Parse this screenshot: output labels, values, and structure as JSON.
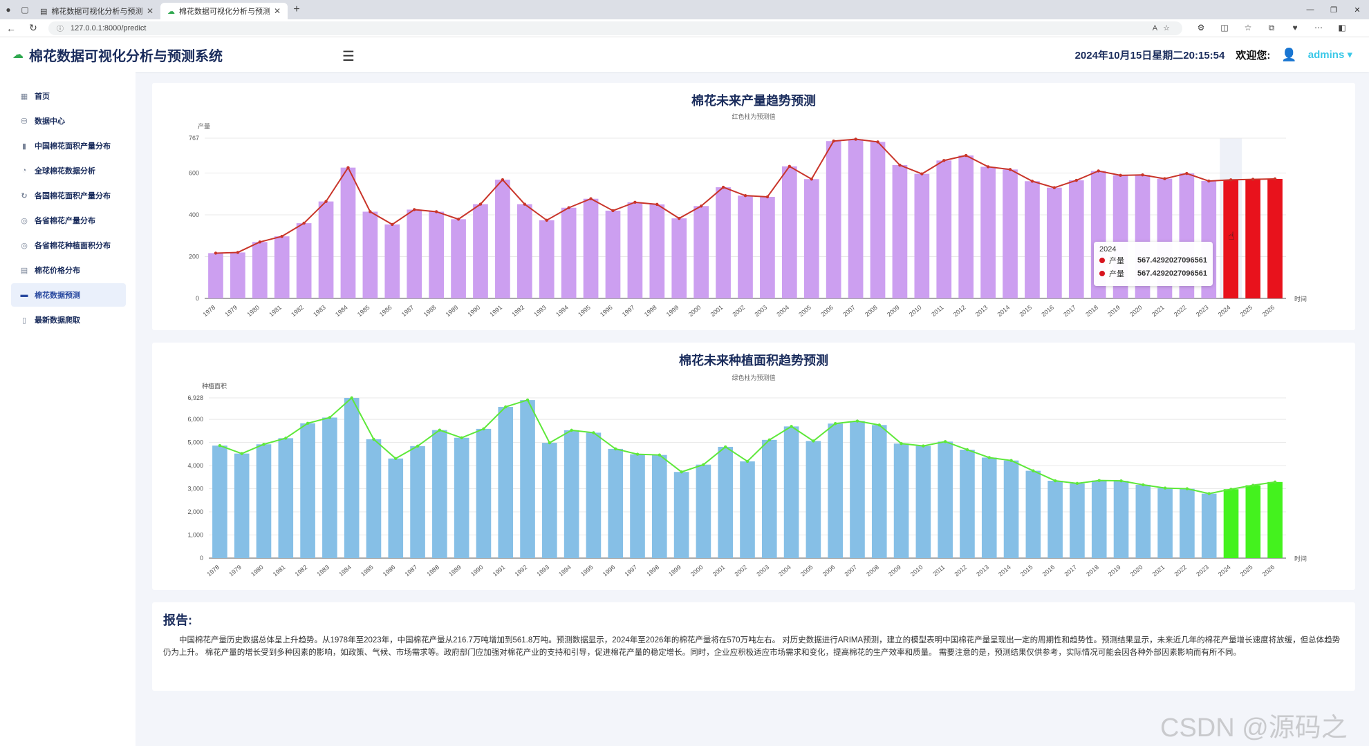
{
  "browser": {
    "tabs": [
      {
        "title": "棉花数据可视化分析与预测系统",
        "active": false
      },
      {
        "title": "棉花数据可视化分析与预测系统",
        "active": true
      }
    ],
    "url": "127.0.0.1:8000/predict"
  },
  "header": {
    "title": "棉花数据可视化分析与预测系统",
    "datetime": "2024年10月15日星期二20:15:54",
    "welcome": "欢迎您:",
    "user": "admins"
  },
  "sidebar": {
    "items": [
      {
        "label": "首页",
        "icon": "grid-icon"
      },
      {
        "label": "数据中心",
        "icon": "database-icon"
      },
      {
        "label": "中国棉花面积产量分布",
        "icon": "bar-chart-icon"
      },
      {
        "label": "全球棉花数据分析",
        "icon": "globe-icon"
      },
      {
        "label": "各国棉花面积产量分布",
        "icon": "refresh-icon"
      },
      {
        "label": "各省棉花产量分布",
        "icon": "circle-icon"
      },
      {
        "label": "各省棉花种植面积分布",
        "icon": "circle-icon"
      },
      {
        "label": "棉花价格分布",
        "icon": "calendar-icon"
      },
      {
        "label": "棉花数据预测",
        "icon": "table-icon",
        "active": true
      },
      {
        "label": "最新数据爬取",
        "icon": "file-icon"
      }
    ]
  },
  "chart_data": [
    {
      "type": "bar",
      "title": "棉花未来产量趋势预测",
      "subtitle": "红色柱为预测值",
      "ylabel": "产量",
      "xlabel": "时间",
      "ylim": [
        0,
        767
      ],
      "yticks": [
        0,
        200,
        400,
        600,
        767
      ],
      "ytick_labels": [
        "0",
        "200",
        "400",
        "600",
        "767"
      ],
      "grid": true,
      "bar_color": "#cc9ff0",
      "forecast_color": "#e8121c",
      "line_color": "#c9352a",
      "forecast_from": "2024",
      "highlighted": "2024",
      "categories": [
        "1978",
        "1979",
        "1980",
        "1981",
        "1982",
        "1983",
        "1984",
        "1985",
        "1986",
        "1987",
        "1988",
        "1989",
        "1990",
        "1991",
        "1992",
        "1993",
        "1994",
        "1995",
        "1996",
        "1997",
        "1998",
        "1999",
        "2000",
        "2001",
        "2002",
        "2003",
        "2004",
        "2005",
        "2006",
        "2007",
        "2008",
        "2009",
        "2010",
        "2011",
        "2012",
        "2013",
        "2014",
        "2015",
        "2016",
        "2017",
        "2018",
        "2019",
        "2020",
        "2021",
        "2022",
        "2023",
        "2024",
        "2025",
        "2026"
      ],
      "series": [
        {
          "name": "产量",
          "values": [
            216.7,
            220,
            270,
            297,
            360,
            464,
            626,
            415,
            354,
            425,
            415,
            379,
            451,
            568,
            451,
            374,
            434,
            477,
            420,
            460,
            450,
            383,
            442,
            532,
            492,
            486,
            632,
            571,
            753,
            762,
            749,
            638,
            596,
            660,
            684,
            630,
            617,
            561,
            530,
            565,
            610,
            589,
            591,
            573,
            598,
            561.8,
            567.4292027096561,
            570,
            572
          ]
        }
      ],
      "tooltip": {
        "label": "2024",
        "rows": [
          {
            "name": "产量",
            "value": "567.4292027096561"
          },
          {
            "name": "产量",
            "value": "567.4292027096561"
          }
        ]
      }
    },
    {
      "type": "bar",
      "title": "棉花未来种植面积趋势预测",
      "subtitle": "绿色柱为预测值",
      "ylabel": "种植面积",
      "xlabel": "时间",
      "ylim": [
        0,
        6928
      ],
      "yticks": [
        0,
        1000,
        2000,
        3000,
        4000,
        5000,
        6000,
        6928
      ],
      "ytick_labels": [
        "0",
        "1,000",
        "2,000",
        "3,000",
        "4,000",
        "5,000",
        "6,000",
        "6,928"
      ],
      "grid": true,
      "bar_color": "#86bfe6",
      "forecast_color": "#44f21e",
      "line_color": "#5ee83a",
      "forecast_from": "2024",
      "categories": [
        "1978",
        "1979",
        "1980",
        "1981",
        "1982",
        "1983",
        "1984",
        "1985",
        "1986",
        "1987",
        "1988",
        "1989",
        "1990",
        "1991",
        "1992",
        "1993",
        "1994",
        "1995",
        "1996",
        "1997",
        "1998",
        "1999",
        "2000",
        "2001",
        "2002",
        "2003",
        "2004",
        "2005",
        "2006",
        "2007",
        "2008",
        "2009",
        "2010",
        "2011",
        "2012",
        "2013",
        "2014",
        "2015",
        "2016",
        "2017",
        "2018",
        "2019",
        "2020",
        "2021",
        "2022",
        "2023",
        "2024",
        "2025",
        "2026"
      ],
      "series": [
        {
          "name": "种植面积",
          "values": [
            4866,
            4520,
            4920,
            5185,
            5828,
            6077,
            6928,
            5140,
            4306,
            4844,
            5535,
            5203,
            5588,
            6539,
            6835,
            4985,
            5528,
            5422,
            4722,
            4491,
            4459,
            3726,
            4041,
            4810,
            4184,
            5111,
            5693,
            5062,
            5816,
            5926,
            5754,
            4952,
            4849,
            5038,
            4688,
            4346,
            4220,
            3775,
            3344,
            3229,
            3354,
            3339,
            3169,
            3028,
            3000,
            2788,
            2980,
            3150,
            3290
          ]
        }
      ]
    }
  ],
  "report": {
    "title": "报告:",
    "text": "中国棉花产量历史数据总体呈上升趋势。从1978年至2023年，中国棉花产量从216.7万吨增加到561.8万吨。预测数据显示，2024年至2026年的棉花产量将在570万吨左右。 对历史数据进行ARIMA预测，建立的模型表明中国棉花产量呈现出一定的周期性和趋势性。预测结果显示，未来近几年的棉花产量增长速度将放缓，但总体趋势仍为上升。 棉花产量的增长受到多种因素的影响，如政策、气候、市场需求等。政府部门应加强对棉花产业的支持和引导，促进棉花产量的稳定增长。同时，企业应积极适应市场需求和变化，提高棉花的生产效率和质量。 需要注意的是，预测结果仅供参考，实际情况可能会因各种外部因素影响而有所不同。"
  },
  "watermark": "CSDN @源码之家"
}
